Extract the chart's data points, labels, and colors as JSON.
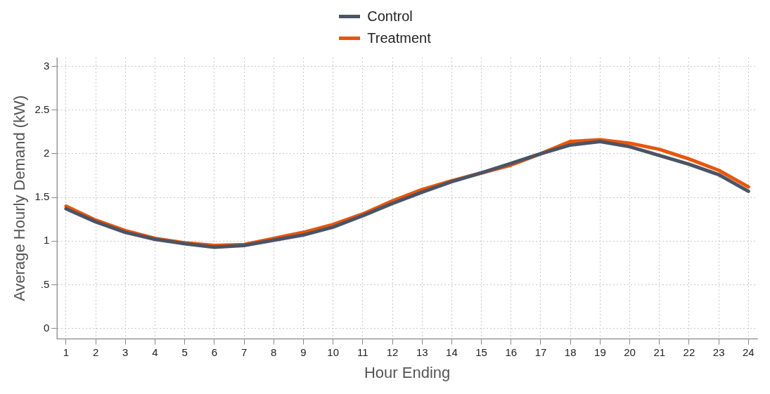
{
  "chart_data": {
    "type": "line",
    "xlabel": "Hour Ending",
    "ylabel": "Average Hourly Demand (kW)",
    "x": [
      1,
      2,
      3,
      4,
      5,
      6,
      7,
      8,
      9,
      10,
      11,
      12,
      13,
      14,
      15,
      16,
      17,
      18,
      19,
      20,
      21,
      22,
      23,
      24
    ],
    "xlim": [
      0.7,
      24.3
    ],
    "xticks": [
      1,
      2,
      3,
      4,
      5,
      6,
      7,
      8,
      9,
      10,
      11,
      12,
      13,
      14,
      15,
      16,
      17,
      18,
      19,
      20,
      21,
      22,
      23,
      24
    ],
    "series": [
      {
        "name": "Control",
        "color": "#4a5466",
        "values": [
          1.37,
          1.22,
          1.1,
          1.02,
          0.97,
          0.93,
          0.95,
          1.01,
          1.07,
          1.16,
          1.29,
          1.43,
          1.56,
          1.68,
          1.78,
          1.89,
          2.0,
          2.1,
          2.14,
          2.08,
          1.98,
          1.88,
          1.76,
          1.57
        ]
      },
      {
        "name": "Treatment",
        "color": "#e8560c",
        "values": [
          1.4,
          1.24,
          1.12,
          1.03,
          0.98,
          0.95,
          0.96,
          1.03,
          1.1,
          1.19,
          1.31,
          1.46,
          1.59,
          1.69,
          1.78,
          1.87,
          2.0,
          2.14,
          2.16,
          2.12,
          2.05,
          1.94,
          1.81,
          1.62
        ]
      }
    ],
    "ylim": [
      -0.12,
      3.1
    ],
    "yticks": [
      0,
      {
        "value": 0.5,
        "label": ".5"
      },
      1,
      1.5,
      2,
      2.5,
      3
    ],
    "grid": true,
    "legend": "top",
    "marker": "none",
    "line_style": "solid"
  }
}
